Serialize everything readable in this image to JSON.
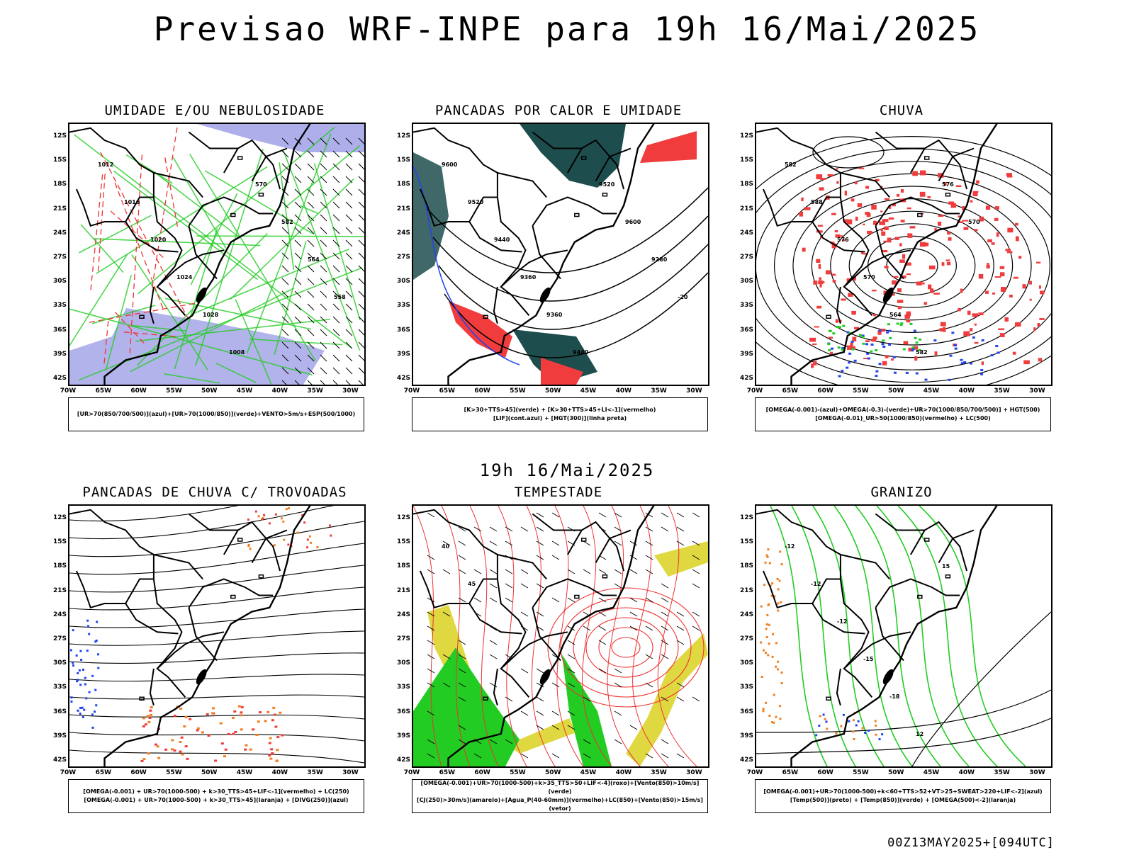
{
  "title": "Previsao WRF-INPE  para 19h 16/Mai/2025",
  "mid_title": "19h 16/Mai/2025",
  "footer": "00Z13MAY2025+[094UTC]",
  "lat_labels": [
    "12S",
    "15S",
    "18S",
    "21S",
    "24S",
    "27S",
    "30S",
    "33S",
    "36S",
    "39S",
    "42S"
  ],
  "lon_labels": [
    "70W",
    "65W",
    "60W",
    "55W",
    "50W",
    "45W",
    "40W",
    "35W",
    "30W"
  ],
  "panels": [
    {
      "title": "UMIDADE E/OU NEBULOSIDADE",
      "legend": [
        "[UR>70(850/700/500)](azul)+[UR>70(1000/850)](verde)+VENTO>5m/s+ESP(500/1000)"
      ],
      "isoline_labels": [
        "1012",
        "1016",
        "1020",
        "1024",
        "1028",
        "1008",
        "570",
        "582",
        "564",
        "558"
      ]
    },
    {
      "title": "PANCADAS POR CALOR E UMIDADE",
      "legend": [
        "[K>30+TTS>45](verde) + [K>30+TTS>45+LI<-1](vermelho)",
        "[LIF](cont.azul) + [HGT(300)](linha preta)"
      ],
      "isoline_labels": [
        "9600",
        "9520",
        "9440",
        "9360",
        "9360",
        "9440",
        "9520",
        "9600",
        "9280",
        "-20"
      ]
    },
    {
      "title": "CHUVA",
      "legend": [
        "[OMEGA(-0.001)-(azul)+OMEGA(-0.3)-(verde)+UR>70(1000/850/700/500)] + HGT(500)",
        "[OMEGA(-0.01)_UR>50(1000/850)(vermelho) + LC(500)"
      ],
      "isoline_labels": [
        "582",
        "588",
        "576",
        "570",
        "564",
        "582",
        "576",
        "570"
      ]
    },
    {
      "title": "PANCADAS DE CHUVA C/ TROVOADAS",
      "legend": [
        "[OMEGA(-0.001) + UR>70(1000-500) + k>30_TTS>45+LIF<-1](vermelho) + LC(250)",
        "[OMEGA(-0.001) + UR>70(1000-500) + k>30_TTS>45](laranja) + [DIVG(250)](azul)"
      ],
      "isoline_labels": []
    },
    {
      "title": "TEMPESTADE",
      "legend": [
        "[OMEGA(-0.001)+UR>70(1000-500)+k>35_TTS>50+LIF<-4](roxo)+[Vento(850)>10m/s](verde)",
        "[CJ(250)>30m/s](amarelo)+[Agua_P(40-60mm)](vermelho)+LC(850)+[Vento(850)>15m/s](vetor)"
      ],
      "isoline_labels": [
        "40",
        "45"
      ]
    },
    {
      "title": "GRANIZO",
      "legend": [
        "[OMEGA(-0.001)+UR>70(1000-500)+k<60+TTS>52+VT>25+SWEAT>220+LIF<-2](azul)",
        "[Temp(500)](preto) + [Temp(850)](verde) + [OMEGA(500)<-2](laranja)"
      ],
      "isoline_labels": [
        "-12",
        "-12",
        "-12",
        "-15",
        "-18",
        "12",
        "15"
      ]
    }
  ],
  "colors": {
    "blue_fill": "#9a9ae6",
    "green_line": "#22cc22",
    "red_line": "#ee3333",
    "dark_teal": "#1e4d4d",
    "red_fill": "#f03c3c",
    "orange": "#f08020",
    "yellow": "#e0d840",
    "green_fill": "#22cc22",
    "blue": "#2244ee"
  }
}
